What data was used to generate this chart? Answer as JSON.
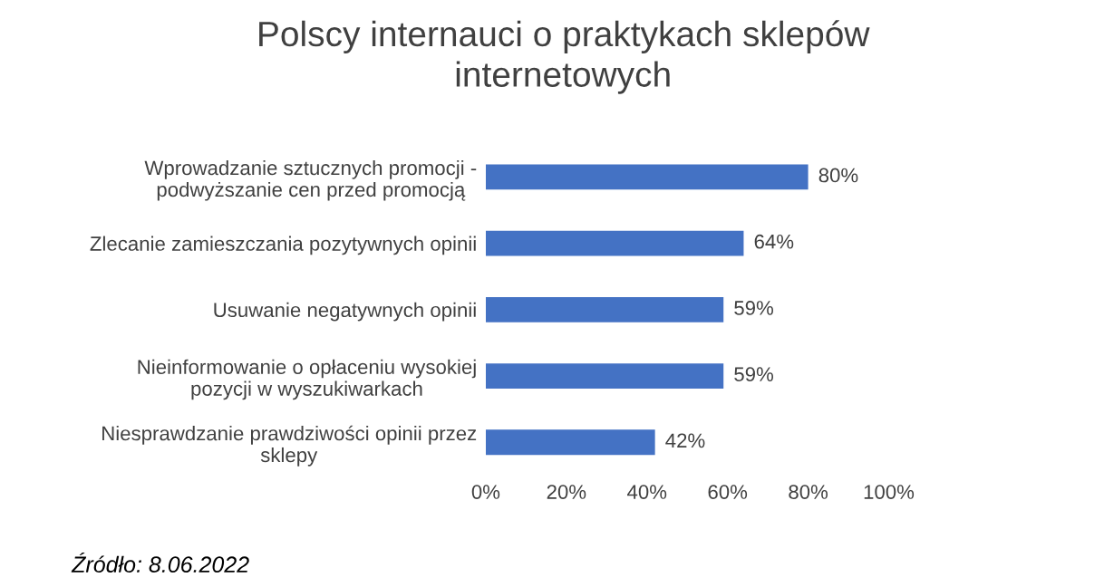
{
  "chart_data": {
    "type": "bar",
    "orientation": "horizontal",
    "title": "Polscy internauci o praktykach sklepów\ninternetowych",
    "categories": [
      "Wprowadzanie sztucznych promocji -\npodwyższanie cen przed promocją",
      "Zlecanie zamieszczania pozytywnych opinii",
      "Usuwanie negatywnych opinii",
      "Nieinformowanie o opłaceniu wysokiej\npozycji w wyszukiwarkach",
      "Niesprawdzanie prawdziwości opinii przez\nsklepy"
    ],
    "values": [
      80,
      64,
      59,
      59,
      42
    ],
    "value_labels": [
      "80%",
      "64%",
      "59%",
      "59%",
      "42%"
    ],
    "color": "#4472c4",
    "xlim": [
      0,
      100
    ],
    "xticks": [
      {
        "value": 0,
        "label": "0%"
      },
      {
        "value": 20,
        "label": "20%"
      },
      {
        "value": 40,
        "label": "40%"
      },
      {
        "value": 60,
        "label": "60%"
      },
      {
        "value": 80,
        "label": "80%"
      },
      {
        "value": 100,
        "label": "100%"
      }
    ],
    "grid": false,
    "annotations": [
      "Źródło: 8.06.2022"
    ]
  }
}
